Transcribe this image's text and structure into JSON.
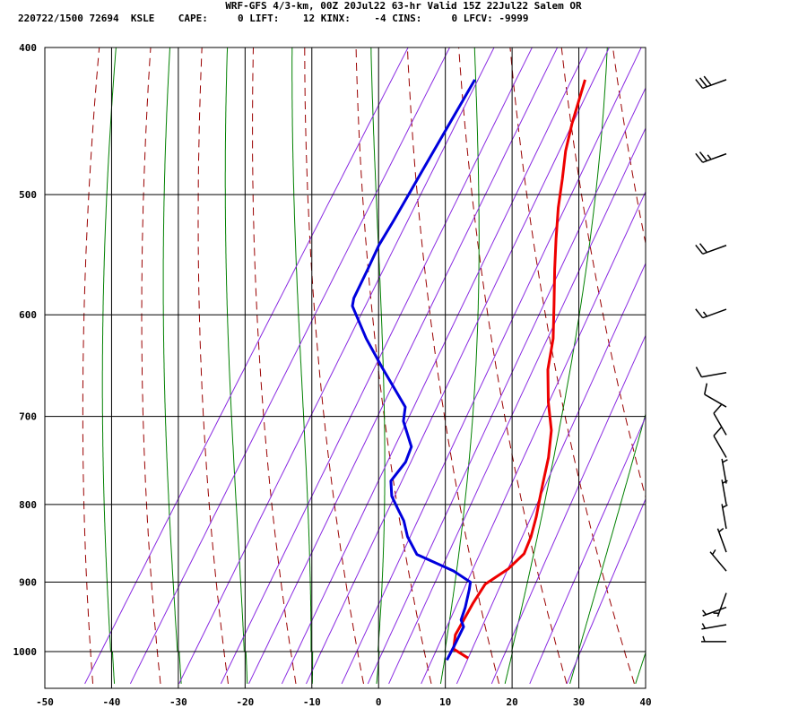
{
  "header": {
    "title": "WRF-GFS 4/3-km, 00Z 20Jul22 63-hr Valid 15Z 22Jul22 Salem OR",
    "stats": "220722/1500 72694  KSLE    CAPE:     0 LIFT:    12 KINX:    -4 CINS:     0 LFCV: -9999"
  },
  "chart_data": {
    "type": "line",
    "title": "WRF-GFS 4/3-km, 00Z 20Jul22 63-hr Valid 15Z 22Jul22 Salem OR",
    "xlabel": "",
    "ylabel": "",
    "xlim": [
      -50,
      40
    ],
    "ylim": [
      1040,
      400
    ],
    "x_ticks": [
      "-50",
      "-40",
      "-30",
      "-20",
      "-10",
      "0",
      "10",
      "20",
      "30",
      "40"
    ],
    "y_ticks": [
      "400",
      "500",
      "600",
      "700",
      "800",
      "900",
      "1000"
    ],
    "grid": true,
    "colors": {
      "temperature": "#ee0000",
      "dewpoint": "#0000dd",
      "dry_adiabat": "#9a0000",
      "moist_adiabat": "#008000",
      "mixing_ratio": "#8a2be2",
      "grid": "#000000"
    },
    "series": [
      {
        "key": "temperature",
        "points": [
          [
            14,
            1010
          ],
          [
            11,
            996
          ],
          [
            10,
            975
          ],
          [
            9.8,
            930
          ],
          [
            9.9,
            903
          ],
          [
            12,
            882
          ],
          [
            13,
            862
          ],
          [
            12.5,
            840
          ],
          [
            11.5,
            815
          ],
          [
            10.5,
            795
          ],
          [
            9.5,
            775
          ],
          [
            8,
            745
          ],
          [
            6,
            715
          ],
          [
            3,
            685
          ],
          [
            0,
            652
          ],
          [
            -2,
            622
          ],
          [
            -5,
            590
          ],
          [
            -8,
            560
          ],
          [
            -10.5,
            535
          ],
          [
            -13,
            510
          ],
          [
            -15,
            488
          ],
          [
            -17,
            468
          ],
          [
            -18.5,
            449
          ],
          [
            -20.5,
            420
          ]
        ]
      },
      {
        "key": "dewpoint",
        "points": [
          [
            11,
            1013
          ],
          [
            10.8,
            990
          ],
          [
            10.5,
            963
          ],
          [
            9.5,
            953
          ],
          [
            9,
            935
          ],
          [
            8,
            910
          ],
          [
            7.5,
            900
          ],
          [
            4,
            885
          ],
          [
            -3,
            863
          ],
          [
            -6,
            840
          ],
          [
            -8,
            820
          ],
          [
            -10,
            805
          ],
          [
            -12,
            790
          ],
          [
            -13.5,
            772
          ],
          [
            -13,
            750
          ],
          [
            -13.5,
            733
          ],
          [
            -17,
            705
          ],
          [
            -18,
            690
          ],
          [
            -25,
            650
          ],
          [
            -30,
            622
          ],
          [
            -35,
            592
          ],
          [
            -35.5,
            585
          ],
          [
            -36,
            560
          ],
          [
            -36.5,
            540
          ],
          [
            -36.5,
            520
          ],
          [
            -36.6,
            500
          ],
          [
            -36.7,
            480
          ],
          [
            -36.8,
            460
          ],
          [
            -37,
            420
          ]
        ]
      }
    ],
    "wind_barbs": [
      {
        "p": 420,
        "dir": 250,
        "spd": 30
      },
      {
        "p": 470,
        "dir": 250,
        "spd": 25
      },
      {
        "p": 540,
        "dir": 250,
        "spd": 20
      },
      {
        "p": 595,
        "dir": 250,
        "spd": 15
      },
      {
        "p": 655,
        "dir": 260,
        "spd": 10
      },
      {
        "p": 690,
        "dir": 300,
        "spd": 10
      },
      {
        "p": 720,
        "dir": 330,
        "spd": 10
      },
      {
        "p": 745,
        "dir": 330,
        "spd": 10
      },
      {
        "p": 775,
        "dir": 350,
        "spd": 5
      },
      {
        "p": 800,
        "dir": 350,
        "spd": 5
      },
      {
        "p": 830,
        "dir": 350,
        "spd": 5
      },
      {
        "p": 860,
        "dir": 340,
        "spd": 5
      },
      {
        "p": 885,
        "dir": 320,
        "spd": 5
      },
      {
        "p": 915,
        "dir": 200,
        "spd": 5
      },
      {
        "p": 935,
        "dir": 250,
        "spd": 5
      },
      {
        "p": 960,
        "dir": 260,
        "spd": 5
      },
      {
        "p": 985,
        "dir": 270,
        "spd": 5
      }
    ]
  }
}
